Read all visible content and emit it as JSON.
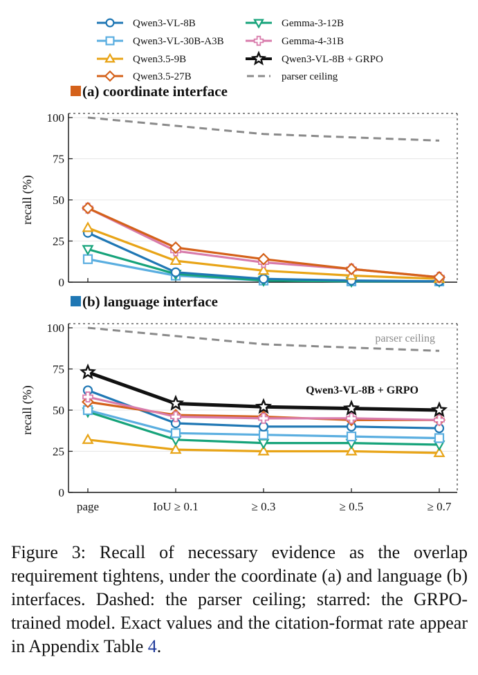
{
  "legend": {
    "entries": [
      {
        "key": "qwen3_vl_8b",
        "name": "Qwen3-VL-8B",
        "color": "#1f77b4",
        "marker": "circle"
      },
      {
        "key": "qwen3_vl_30b",
        "name": "Qwen3-VL-30B-A3B",
        "color": "#5aaee0",
        "marker": "square"
      },
      {
        "key": "qwen35_9b",
        "name": "Qwen3.5-9B",
        "color": "#e8a417",
        "marker": "triangle-up"
      },
      {
        "key": "qwen35_27b",
        "name": "Qwen3.5-27B",
        "color": "#d4611a",
        "marker": "diamond"
      },
      {
        "key": "gemma3_12b",
        "name": "Gemma-3-12B",
        "color": "#16a37a",
        "marker": "triangle-down"
      },
      {
        "key": "gemma4_31b",
        "name": "Gemma-4-31B",
        "color": "#d87bab",
        "marker": "plus"
      },
      {
        "key": "grpo",
        "name": "Qwen3-VL-8B + GRPO",
        "color": "#111111",
        "marker": "star"
      },
      {
        "key": "ceiling",
        "name": "parser ceiling",
        "color": "#8a8a8a",
        "marker": "dashed"
      }
    ]
  },
  "chart_data": [
    {
      "type": "line",
      "title": "(a) coordinate interface",
      "title_marker_color": "#d4611a",
      "ylabel": "recall (%)",
      "ylim": [
        0,
        100
      ],
      "yticks": [
        0,
        25,
        50,
        75,
        100
      ],
      "x": [
        "page",
        "IoU ≥ 0.1",
        "≥ 0.3",
        "≥ 0.5",
        "≥ 0.7"
      ],
      "series": [
        {
          "key": "ceiling",
          "name": "parser ceiling",
          "values": [
            100,
            95,
            90,
            88,
            86
          ]
        },
        {
          "key": "qwen3_vl_30b",
          "name": "Qwen3-VL-30B-A3B",
          "values": [
            14,
            4,
            1,
            0.5,
            0.5
          ]
        },
        {
          "key": "gemma3_12b",
          "name": "Gemma-3-12B",
          "values": [
            20,
            5,
            1,
            0.5,
            0.5
          ]
        },
        {
          "key": "qwen3_vl_8b",
          "name": "Qwen3-VL-8B",
          "values": [
            30,
            6,
            2,
            1,
            0.5
          ]
        },
        {
          "key": "qwen35_9b",
          "name": "Qwen3.5-9B",
          "values": [
            33,
            13,
            7,
            4,
            2
          ]
        },
        {
          "key": "gemma4_31b",
          "name": "Gemma-4-31B",
          "values": [
            45,
            19,
            12,
            8,
            3
          ]
        },
        {
          "key": "qwen35_27b",
          "name": "Qwen3.5-27B",
          "values": [
            45,
            21,
            14,
            8,
            3
          ]
        }
      ]
    },
    {
      "type": "line",
      "title": "(b) language interface",
      "title_marker_color": "#1f77b4",
      "ylabel": "recall (%)",
      "ylim": [
        0,
        100
      ],
      "yticks": [
        0,
        25,
        50,
        75,
        100
      ],
      "x": [
        "page",
        "IoU ≥ 0.1",
        "≥ 0.3",
        "≥ 0.5",
        "≥ 0.7"
      ],
      "series": [
        {
          "key": "ceiling",
          "name": "parser ceiling",
          "values": [
            100,
            95,
            90,
            88,
            86
          ]
        },
        {
          "key": "qwen35_9b",
          "name": "Qwen3.5-9B",
          "values": [
            32,
            26,
            25,
            25,
            24
          ]
        },
        {
          "key": "gemma3_12b",
          "name": "Gemma-3-12B",
          "values": [
            49,
            32,
            30,
            30,
            29
          ]
        },
        {
          "key": "qwen3_vl_30b",
          "name": "Qwen3-VL-30B-A3B",
          "values": [
            50,
            36,
            35,
            34,
            33
          ]
        },
        {
          "key": "qwen3_vl_8b",
          "name": "Qwen3-VL-8B",
          "values": [
            62,
            42,
            40,
            40,
            39
          ]
        },
        {
          "key": "qwen35_27b",
          "name": "Qwen3.5-27B",
          "values": [
            55,
            47,
            46,
            44,
            44
          ]
        },
        {
          "key": "gemma4_31b",
          "name": "Gemma-4-31B",
          "values": [
            58,
            46,
            45,
            45,
            44
          ]
        },
        {
          "key": "grpo",
          "name": "Qwen3-VL-8B + GRPO",
          "values": [
            73,
            54,
            52,
            51,
            50
          ]
        }
      ],
      "annotations": [
        {
          "text": "parser ceiling",
          "series": "ceiling"
        },
        {
          "text": "Qwen3-VL-8B + GRPO",
          "series": "grpo"
        }
      ]
    }
  ],
  "caption": {
    "text": "Figure 3: Recall of necessary evidence as the overlap requirement tightens, under the coordinate (a) and language (b) interfaces. Dashed: the parser ceiling; starred: the GRPO-trained model. Exact values and the citation-format rate appear in Appendix Table ",
    "ref": "4",
    "end": "."
  }
}
